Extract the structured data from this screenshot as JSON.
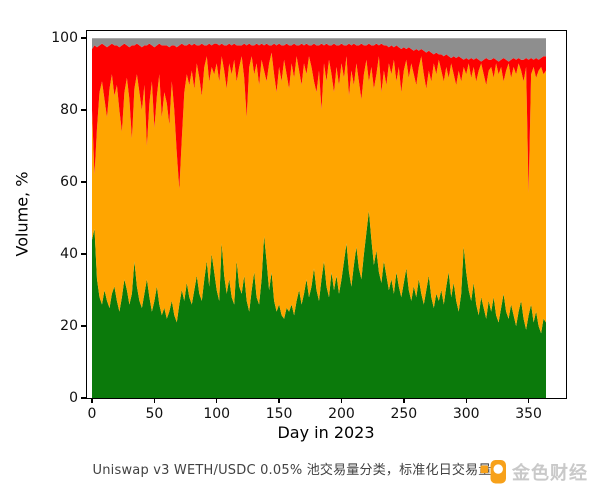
{
  "figure": {
    "background": "#FFFFFF",
    "caption": "Uniswap v3 WETH/USDC 0.05% 池交易量分类，标准化日交易量",
    "watermark": {
      "brand": "金色财经",
      "icon": "jinse-logo-icon",
      "icon_color": "#F7A11A",
      "text_color": "#C9C9C9"
    }
  },
  "chart_data": {
    "type": "area",
    "variant": "normalized-stacked",
    "title": "",
    "xlabel": "Day in 2023",
    "ylabel": "Volume, %",
    "xticks": [
      0,
      50,
      100,
      150,
      200,
      250,
      300,
      350
    ],
    "yticks": [
      0,
      20,
      40,
      60,
      80,
      100
    ],
    "xlim": [
      -4,
      380
    ],
    "ylim": [
      0,
      102
    ],
    "grid": false,
    "legend": "none",
    "x_start_day": 0,
    "x_step_days": 2,
    "num_points": 183,
    "layers": [
      {
        "name": "green-bottom-layer",
        "color": "#0B7A0B",
        "top": [
          44,
          47,
          33,
          28,
          26,
          30,
          27,
          25,
          29,
          31,
          27,
          24,
          28,
          33,
          30,
          26,
          29,
          38,
          31,
          27,
          25,
          29,
          33,
          28,
          24,
          27,
          31,
          26,
          23,
          25,
          22,
          24,
          27,
          23,
          21,
          26,
          30,
          27,
          32,
          28,
          26,
          30,
          34,
          29,
          27,
          33,
          38,
          31,
          40,
          35,
          30,
          27,
          43,
          34,
          29,
          33,
          28,
          26,
          38,
          31,
          29,
          34,
          27,
          24,
          30,
          35,
          28,
          26,
          33,
          45,
          38,
          30,
          35,
          27,
          24,
          26,
          23,
          22,
          25,
          24,
          26,
          23,
          27,
          30,
          26,
          29,
          33,
          28,
          31,
          36,
          30,
          27,
          33,
          38,
          31,
          28,
          35,
          30,
          34,
          29,
          33,
          38,
          43,
          35,
          31,
          37,
          42,
          36,
          33,
          40,
          46,
          52,
          44,
          37,
          41,
          35,
          32,
          38,
          34,
          30,
          33,
          29,
          35,
          31,
          28,
          32,
          36,
          30,
          27,
          31,
          28,
          33,
          29,
          26,
          30,
          34,
          28,
          25,
          29,
          27,
          30,
          26,
          31,
          35,
          28,
          32,
          27,
          24,
          29,
          42,
          35,
          30,
          27,
          32,
          26,
          23,
          28,
          25,
          22,
          27,
          24,
          28,
          23,
          21,
          25,
          29,
          24,
          22,
          26,
          23,
          20,
          24,
          27,
          22,
          19,
          23,
          26,
          21,
          24,
          20,
          18,
          22,
          21
        ]
      },
      {
        "name": "orange-middle-layer",
        "color": "#FFA500",
        "top": [
          80,
          62,
          75,
          85,
          88,
          83,
          78,
          86,
          90,
          84,
          87,
          80,
          74,
          85,
          89,
          83,
          72,
          86,
          90,
          85,
          80,
          87,
          70,
          82,
          88,
          75,
          84,
          90,
          78,
          85,
          82,
          76,
          88,
          80,
          68,
          58,
          72,
          85,
          90,
          87,
          91,
          86,
          93,
          89,
          84,
          92,
          95,
          88,
          92,
          90,
          93,
          88,
          95,
          91,
          86,
          93,
          90,
          94,
          88,
          92,
          95,
          89,
          78,
          92,
          95,
          90,
          93,
          87,
          94,
          91,
          88,
          93,
          96,
          90,
          85,
          92,
          88,
          94,
          90,
          86,
          93,
          89,
          95,
          91,
          87,
          93,
          90,
          95,
          92,
          88,
          85,
          91,
          80,
          93,
          88,
          94,
          90,
          85,
          92,
          87,
          93,
          89,
          95,
          84,
          91,
          87,
          93,
          88,
          83,
          90,
          94,
          88,
          92,
          86,
          90,
          95,
          85,
          91,
          87,
          93,
          90,
          94,
          88,
          92,
          85,
          91,
          94,
          89,
          93,
          90,
          87,
          92,
          95,
          90,
          86,
          91,
          88,
          93,
          90,
          94,
          91,
          88,
          92,
          89,
          93,
          90,
          87,
          91,
          88,
          92,
          90,
          93,
          89,
          92,
          88,
          91,
          93,
          90,
          87,
          91,
          92,
          89,
          93,
          90,
          92,
          88,
          91,
          93,
          89,
          92,
          90,
          93,
          91,
          88,
          92,
          57,
          90,
          92,
          89,
          91,
          92,
          90,
          91
        ]
      },
      {
        "name": "red-top-layer",
        "color": "#FF0000",
        "top": [
          97,
          98,
          97.5,
          98,
          98.5,
          98,
          97.5,
          98,
          98.5,
          98,
          98,
          97.5,
          98,
          98.5,
          98,
          97.5,
          98,
          98,
          98.5,
          98,
          97.5,
          98,
          98,
          98.5,
          98,
          97.5,
          98,
          98.5,
          98,
          98,
          98,
          97.5,
          98,
          98,
          97.5,
          98,
          98.5,
          98,
          98,
          98.5,
          98,
          98.5,
          98,
          98,
          98.5,
          98,
          98,
          98.5,
          98,
          98.5,
          98.5,
          98,
          98.5,
          98,
          98,
          98.5,
          98,
          98.5,
          98,
          98,
          98,
          98.5,
          98,
          98.5,
          98,
          98,
          98.5,
          98,
          98.5,
          98,
          98.5,
          98,
          98,
          98.5,
          98,
          98.5,
          98,
          98,
          98.5,
          98,
          98,
          98.5,
          98,
          98,
          98.5,
          98,
          98.5,
          98,
          98,
          98.5,
          98,
          98,
          98.5,
          98,
          98.5,
          98,
          98,
          98.5,
          98,
          98,
          98.5,
          98,
          98,
          98.5,
          98,
          98.5,
          98,
          98,
          98.5,
          98,
          98,
          98.5,
          98,
          98,
          98.5,
          98,
          98.5,
          98,
          98,
          97.5,
          98,
          97.5,
          98,
          97.5,
          97,
          97.5,
          97,
          97.5,
          97,
          96.5,
          97,
          96.5,
          97,
          96.5,
          96,
          96.5,
          96,
          95.5,
          96,
          95.5,
          95.5,
          95,
          95.5,
          95,
          94.5,
          95,
          94.5,
          95,
          94.5,
          94,
          94.5,
          94,
          94.5,
          94,
          94.5,
          94,
          93.5,
          94,
          94.5,
          94,
          94,
          94.5,
          94,
          93.5,
          94,
          94.5,
          94,
          93.5,
          94,
          94.5,
          94,
          94.5,
          94,
          94,
          94.5,
          94,
          94.5,
          94,
          94.5,
          94,
          94.5,
          95,
          95
        ]
      },
      {
        "name": "gray-residual-layer",
        "color": "#8E8E8E",
        "top_constant": 100
      }
    ]
  }
}
